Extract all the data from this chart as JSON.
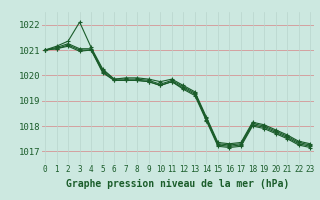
{
  "xlabel": "Graphe pression niveau de la mer (hPa)",
  "bg_color": "#cce8e0",
  "grid_color_h": "#d4a0a0",
  "grid_color_v": "#b8d4cc",
  "line_color": "#1a5c2a",
  "ylim": [
    1016.5,
    1022.5
  ],
  "xlim": [
    -0.3,
    23.3
  ],
  "yticks": [
    1017,
    1018,
    1019,
    1020,
    1021,
    1022
  ],
  "xticks": [
    0,
    1,
    2,
    3,
    4,
    5,
    6,
    7,
    8,
    9,
    10,
    11,
    12,
    13,
    14,
    15,
    16,
    17,
    18,
    19,
    20,
    21,
    22,
    23
  ],
  "series": [
    [
      1021.0,
      1021.15,
      1021.35,
      1022.1,
      1021.1,
      1020.25,
      1019.85,
      1019.9,
      1019.9,
      1019.85,
      1019.75,
      1019.85,
      1019.6,
      1019.35,
      1018.35,
      1017.35,
      1017.3,
      1017.35,
      1018.15,
      1018.05,
      1017.85,
      1017.65,
      1017.4,
      1017.3
    ],
    [
      1021.0,
      1021.1,
      1021.25,
      1021.05,
      1021.05,
      1020.2,
      1019.85,
      1019.85,
      1019.85,
      1019.8,
      1019.65,
      1019.8,
      1019.55,
      1019.3,
      1018.3,
      1017.3,
      1017.25,
      1017.3,
      1018.1,
      1018.0,
      1017.8,
      1017.6,
      1017.35,
      1017.25
    ],
    [
      1021.0,
      1021.05,
      1021.2,
      1021.0,
      1021.0,
      1020.15,
      1019.8,
      1019.8,
      1019.8,
      1019.75,
      1019.6,
      1019.75,
      1019.5,
      1019.25,
      1018.25,
      1017.25,
      1017.2,
      1017.25,
      1018.05,
      1017.95,
      1017.75,
      1017.55,
      1017.3,
      1017.2
    ],
    [
      1021.0,
      1021.05,
      1021.15,
      1020.95,
      1021.0,
      1020.1,
      1019.8,
      1019.8,
      1019.8,
      1019.75,
      1019.6,
      1019.75,
      1019.45,
      1019.2,
      1018.2,
      1017.2,
      1017.15,
      1017.2,
      1018.0,
      1017.9,
      1017.7,
      1017.5,
      1017.25,
      1017.15
    ]
  ],
  "marker_size": 3.5,
  "linewidth": 0.8,
  "xlabel_fontsize": 7,
  "ytick_fontsize": 6.5,
  "xtick_fontsize": 5.5
}
